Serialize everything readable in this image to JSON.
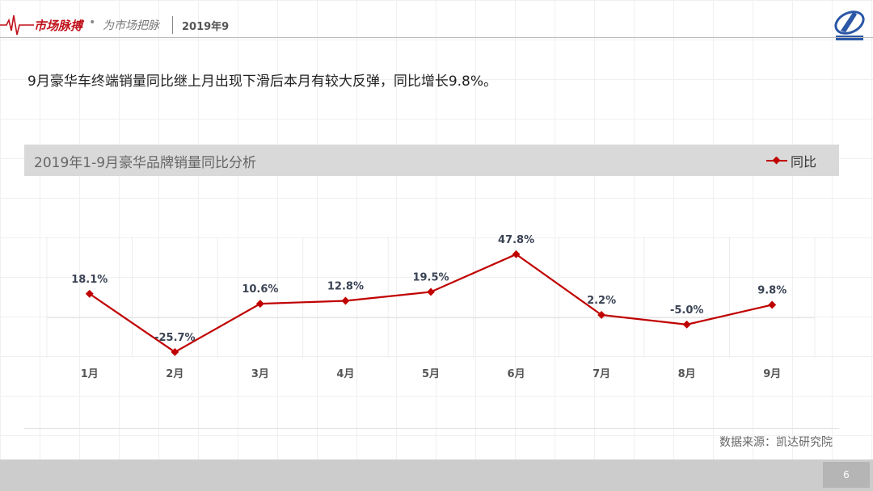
{
  "header": {
    "brand": "市场脉搏",
    "dot": "•",
    "slogan": "为市场把脉",
    "date": "2019年9"
  },
  "headline": "9月豪华车终端销量同比继上月出现下滑后本月有较大反弹，同比增长9.8%。",
  "chart_data": {
    "type": "line",
    "title": "2019年1-9月豪华品牌销量同比分析",
    "categories": [
      "1月",
      "2月",
      "3月",
      "4月",
      "5月",
      "6月",
      "7月",
      "8月",
      "9月"
    ],
    "series": [
      {
        "name": "同比",
        "values": [
          18.1,
          -25.7,
          10.6,
          12.8,
          19.5,
          47.8,
          2.2,
          -5.0,
          9.8
        ],
        "labels": [
          "18.1%",
          "-25.7%",
          "10.6%",
          "12.8%",
          "19.5%",
          "47.8%",
          "2.2%",
          "-5.0%",
          "9.8%"
        ],
        "color": "#c00000"
      }
    ],
    "ylim": [
      -30,
      55
    ],
    "legend_position": "top-right",
    "grid": true
  },
  "source": "数据来源：凯达研究院",
  "page_number": "6",
  "colors": {
    "accent": "#c00000",
    "titlebar": "#d9d9d9",
    "footer": "#cccccc"
  }
}
